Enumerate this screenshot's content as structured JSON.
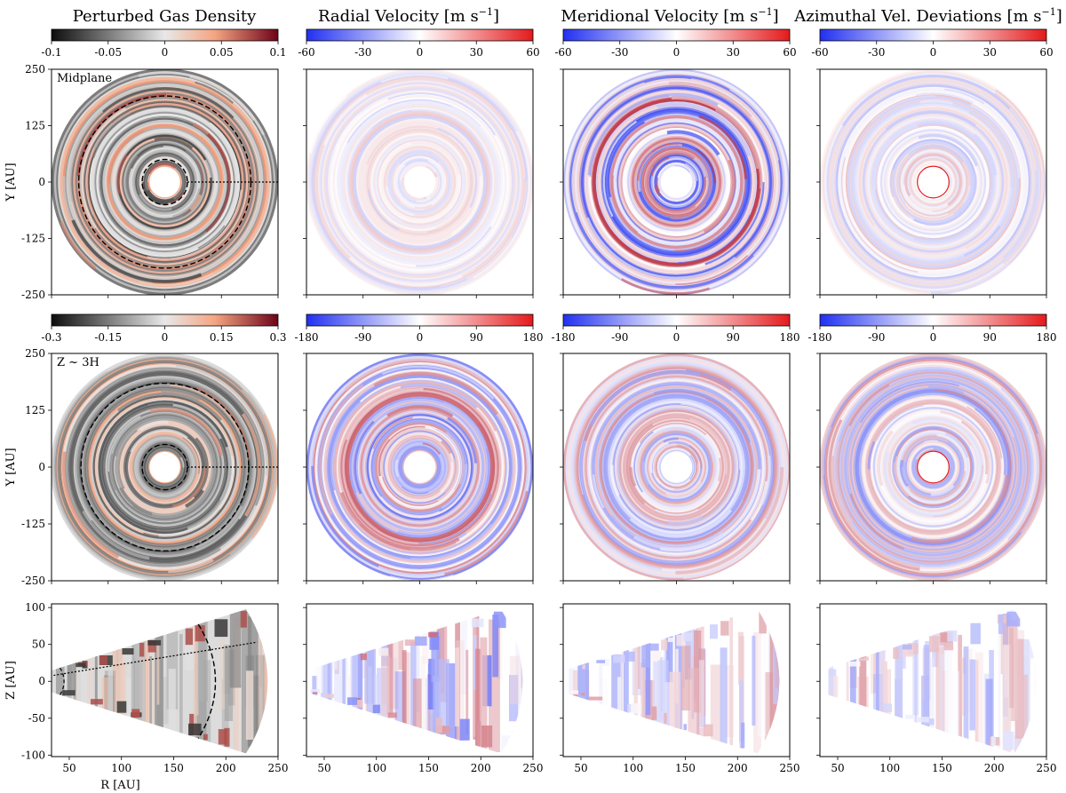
{
  "figure": {
    "column_titles": [
      "Perturbed Gas Density",
      "Radial Velocity [m s",
      "Meridional Velocity [m s",
      "Azimuthal Vel. Deviations [m s"
    ],
    "title_units_suffix": "−1",
    "title_units_close": "]"
  },
  "colors": {
    "positive": "#b2182b",
    "negative": "#2130f0",
    "density_dark": "#0d0d0d",
    "density_mid": "#e8e8e8",
    "density_pos": "#f4a582",
    "density_max": "#6e0219"
  },
  "chart_data": [
    {
      "id": "colorbars-row1",
      "type": "heatmap",
      "colorbars": [
        {
          "cmap": "density",
          "ticks": [
            "-0.1",
            "-0.05",
            "0",
            "0.05",
            "0.1"
          ],
          "range": [
            -0.1,
            0.1
          ]
        },
        {
          "cmap": "bwr",
          "ticks": [
            "-60",
            "-30",
            "0",
            "30",
            "60"
          ],
          "range": [
            -60,
            60
          ]
        },
        {
          "cmap": "bwr",
          "ticks": [
            "-60",
            "-30",
            "0",
            "30",
            "60"
          ],
          "range": [
            -60,
            60
          ]
        },
        {
          "cmap": "bwr",
          "ticks": [
            "-60",
            "-30",
            "0",
            "30",
            "60"
          ],
          "range": [
            -60,
            60
          ]
        }
      ]
    },
    {
      "id": "row1-midplane",
      "type": "heatmap",
      "label": "Midplane",
      "ylabel": "Y [AU]",
      "xlim": [
        -250,
        250
      ],
      "ylim": [
        -250,
        250
      ],
      "yticks": [
        "250",
        "125",
        "0",
        "-125",
        "-250"
      ],
      "inner_radius": 35,
      "outer_radius": 250,
      "dashed_circles": [
        190,
        50
      ],
      "dotted_ray": {
        "from_x": 50,
        "to_x": 250
      },
      "panels": [
        {
          "quantity": "Perturbed Gas Density",
          "cmap": "density",
          "strength": 0.85
        },
        {
          "quantity": "Radial Velocity",
          "cmap": "bwr",
          "strength": 0.25
        },
        {
          "quantity": "Meridional Velocity",
          "cmap": "bwr",
          "strength": 0.9
        },
        {
          "quantity": "Azimuthal Vel. Deviations",
          "cmap": "bwr",
          "strength": 0.3
        }
      ]
    },
    {
      "id": "colorbars-row2",
      "type": "heatmap",
      "colorbars": [
        {
          "cmap": "density",
          "ticks": [
            "-0.3",
            "-0.15",
            "0",
            "0.15",
            "0.3"
          ],
          "range": [
            -0.3,
            0.3
          ]
        },
        {
          "cmap": "bwr",
          "ticks": [
            "-180",
            "-90",
            "0",
            "90",
            "180"
          ],
          "range": [
            -180,
            180
          ]
        },
        {
          "cmap": "bwr",
          "ticks": [
            "-180",
            "-90",
            "0",
            "90",
            "180"
          ],
          "range": [
            -180,
            180
          ]
        },
        {
          "cmap": "bwr",
          "ticks": [
            "-180",
            "-90",
            "0",
            "90",
            "180"
          ],
          "range": [
            -180,
            180
          ]
        }
      ]
    },
    {
      "id": "row2-z3h",
      "type": "heatmap",
      "label": "Z ~ 3H",
      "ylabel": "Y [AU]",
      "xlim": [
        -250,
        250
      ],
      "ylim": [
        -250,
        250
      ],
      "yticks": [
        "250",
        "125",
        "0",
        "-125",
        "-250"
      ],
      "inner_radius": 35,
      "outer_radius": 250,
      "dashed_circles": [
        185,
        50
      ],
      "dotted_ray": {
        "from_x": 50,
        "to_x": 250
      },
      "panels": [
        {
          "quantity": "Perturbed Gas Density",
          "cmap": "density",
          "strength": 0.8
        },
        {
          "quantity": "Radial Velocity",
          "cmap": "bwr",
          "strength": 0.7
        },
        {
          "quantity": "Meridional Velocity",
          "cmap": "bwr",
          "strength": 0.55
        },
        {
          "quantity": "Azimuthal Vel. Deviations",
          "cmap": "bwr",
          "strength": 0.55
        }
      ]
    },
    {
      "id": "row3-rz",
      "type": "heatmap",
      "xlabel": "R [AU]",
      "ylabel": "Z [AU]",
      "xlim": [
        33,
        250
      ],
      "ylim": [
        -102,
        105
      ],
      "xticks": [
        "50",
        "100",
        "150",
        "200",
        "250"
      ],
      "yticks": [
        "100",
        "50",
        "0",
        "-50",
        "-100"
      ],
      "wedge_half_angle_deg": 24,
      "wedge_outer_radius": 240,
      "dashed_arc_radius": 190,
      "dotted_line_slope_deg": 13,
      "panels": [
        {
          "quantity": "Perturbed Gas Density",
          "cmap": "density",
          "strength": 0.85
        },
        {
          "quantity": "Radial Velocity",
          "cmap": "bwr",
          "strength": 0.65
        },
        {
          "quantity": "Meridional Velocity",
          "cmap": "bwr",
          "strength": 0.5
        },
        {
          "quantity": "Azimuthal Vel. Deviations",
          "cmap": "bwr",
          "strength": 0.45
        }
      ]
    }
  ]
}
